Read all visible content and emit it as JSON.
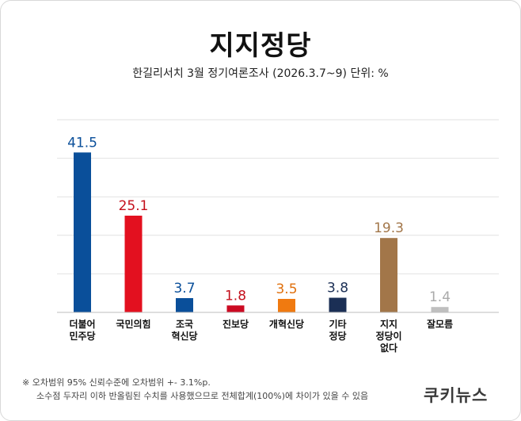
{
  "title": "지지정당",
  "subtitle": "한길리서치 3월 정기여론조사 (2026.3.7~9) 단위: %",
  "footnotes": [
    "※ 오차범위 95% 신뢰수준에 오차범위 +- 3.1%p.",
    "소수점 두자리 이하 반올림된 수치를 사용했으므로 전체합계(100%)에 차이가 있을 수 있음"
  ],
  "logo": "쿠키뉴스",
  "chart_data": {
    "type": "bar",
    "title": "지지정당",
    "subtitle": "한길리서치 3월 정기여론조사 (2026.3.7~9) 단위: %",
    "categories": [
      "더불어\n민주당",
      "국민의힘",
      "조국\n혁신당",
      "진보당",
      "개혁신당",
      "기타\n정당",
      "지지\n정당이\n없다",
      "잘모름"
    ],
    "values": [
      41.5,
      25.1,
      3.7,
      1.8,
      3.5,
      3.8,
      19.3,
      1.4
    ],
    "colors": [
      "#0a4f9a",
      "#e3101f",
      "#0a4f9a",
      "#cc0a22",
      "#f07a10",
      "#1b2f55",
      "#a27649",
      "#bfbfbf"
    ],
    "label_colors": [
      "#0a4f9a",
      "#c4101c",
      "#0a4f9a",
      "#c4101c",
      "#e0700d",
      "#1b2f55",
      "#a27649",
      "#aaaaaa"
    ],
    "ylim": [
      0,
      50
    ],
    "grid": true,
    "xlabel": "",
    "ylabel": ""
  }
}
